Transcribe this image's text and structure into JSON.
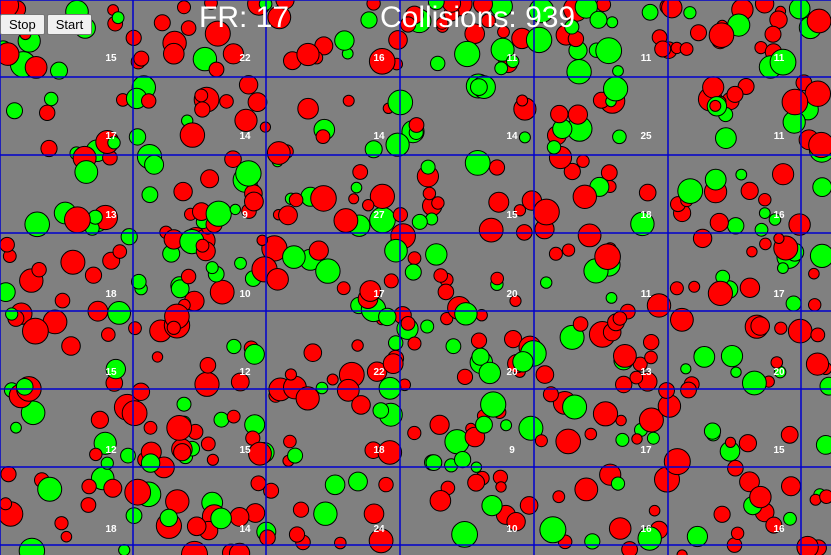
{
  "controls": {
    "stop_label": "Stop",
    "start_label": "Start"
  },
  "hud": {
    "frame_rate_label": "FR:",
    "frame_rate_value": "17",
    "collisions_label": "Collisions:",
    "collisions_value": "939"
  },
  "grid": {
    "rows": [
      [
        "15",
        "22",
        "16",
        "11",
        "11",
        "11"
      ],
      [
        "17",
        "14",
        "14",
        "14",
        "25",
        "11"
      ],
      [
        "13",
        "9",
        "27",
        "15",
        "18",
        "16"
      ],
      [
        "18",
        "10",
        "17",
        "20",
        "11",
        "17"
      ],
      [
        "15",
        "12",
        "22",
        "20",
        "13",
        "20"
      ],
      [
        "12",
        "15",
        "18",
        "9",
        "17",
        "15"
      ],
      [
        "18",
        "14",
        "24",
        "10",
        "16",
        "16"
      ]
    ]
  },
  "colors": {
    "background": "#808080",
    "grid_line": "#0000cc",
    "ball_red": "#ff0000",
    "ball_green": "#00ff00",
    "ball_outline": "#000000",
    "cell_count_text": "#ffffff"
  }
}
